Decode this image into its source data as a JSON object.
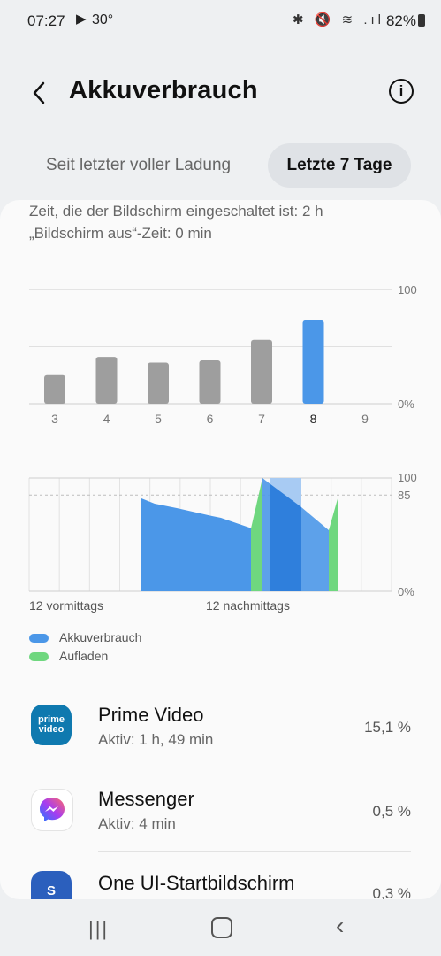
{
  "status": {
    "time": "07:27",
    "play_icon": "play-store-icon",
    "temp": "30°",
    "icons": "✱ 🔇 ≋ .ıl",
    "battery": "82%"
  },
  "header": {
    "title": "Akkuverbrauch",
    "back_icon": "chevron-left-icon",
    "info_icon": "info-icon"
  },
  "tabs": [
    {
      "label": "Seit letzter voller Ladung",
      "selected": false
    },
    {
      "label": "Letzte 7 Tage",
      "selected": true
    }
  ],
  "screen": {
    "on": "Zeit, die der Bildschirm eingeschaltet ist: 2 h",
    "off": "„Bildschirm aus“-Zeit: 0 min"
  },
  "chart_data": [
    {
      "type": "bar",
      "categories": [
        "3",
        "4",
        "5",
        "6",
        "7",
        "8",
        "9"
      ],
      "values": [
        25,
        41,
        36,
        38,
        56,
        73,
        null
      ],
      "highlight_index": 5,
      "ytick_labels": [
        "100",
        "0%"
      ],
      "ylim": [
        0,
        100
      ],
      "colors": {
        "default": "#9e9e9e",
        "highlight": "#4b97e8"
      }
    },
    {
      "type": "area",
      "xlabels": [
        "12 vormittags",
        "12 nachmittags"
      ],
      "ytick_labels": [
        "100",
        "85",
        "0%"
      ],
      "ylim": [
        0,
        100
      ],
      "series": [
        {
          "name": "Akkuverbrauch",
          "color": "#4b97e8"
        },
        {
          "name": "Aufladen",
          "color": "#6fd77f"
        }
      ]
    }
  ],
  "legend": [
    {
      "label": "Akkuverbrauch",
      "color": "#4b97e8"
    },
    {
      "label": "Aufladen",
      "color": "#6fd77f"
    }
  ],
  "apps": [
    {
      "name": "Prime Video",
      "sub": "Aktiv: 1 h, 49 min",
      "pct": "15,1 %",
      "icon": "prime-video-icon",
      "icon_text": "prime video"
    },
    {
      "name": "Messenger",
      "sub": "Aktiv: 4 min",
      "pct": "0,5 %",
      "icon": "messenger-icon"
    },
    {
      "name": "One UI-Startbildschirm",
      "sub": "",
      "pct": "0,3 %",
      "icon": "one-ui-home-icon",
      "icon_text": "S"
    }
  ]
}
